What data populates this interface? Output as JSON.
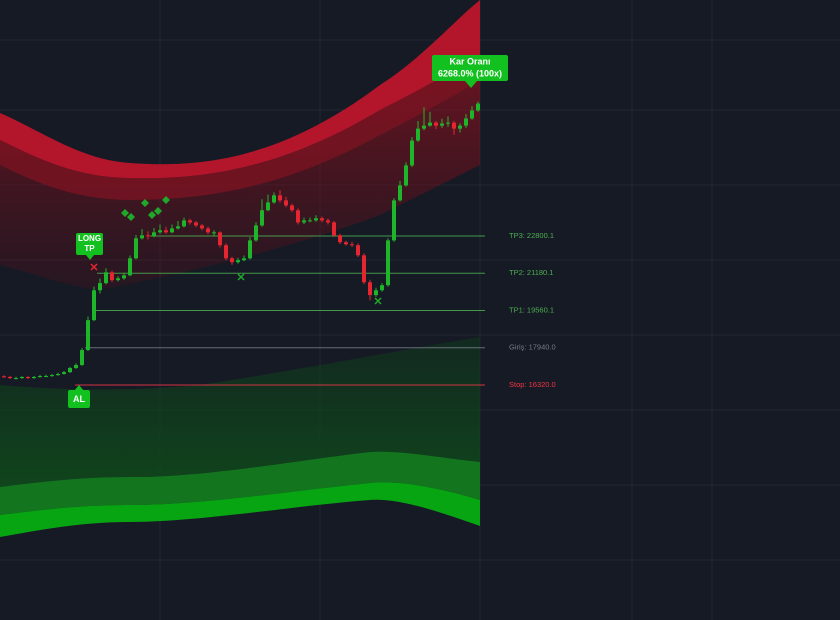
{
  "chart_data": {
    "type": "candlestick",
    "candles": [
      [
        16700,
        16740,
        16630,
        16670
      ],
      [
        16670,
        16710,
        16580,
        16620
      ],
      [
        16620,
        16680,
        16570,
        16620
      ],
      [
        16620,
        16700,
        16590,
        16670
      ],
      [
        16670,
        16700,
        16580,
        16620
      ],
      [
        16620,
        16710,
        16590,
        16670
      ],
      [
        16670,
        16760,
        16640,
        16710
      ],
      [
        16710,
        16770,
        16660,
        16710
      ],
      [
        16710,
        16800,
        16680,
        16750
      ],
      [
        16750,
        16850,
        16720,
        16800
      ],
      [
        16800,
        16930,
        16770,
        16880
      ],
      [
        16880,
        17110,
        16850,
        17060
      ],
      [
        17060,
        17260,
        17020,
        17190
      ],
      [
        17190,
        17930,
        17150,
        17840
      ],
      [
        17840,
        19300,
        17800,
        19140
      ],
      [
        19140,
        20600,
        19100,
        20440
      ],
      [
        20440,
        20950,
        20300,
        20750
      ],
      [
        20750,
        21400,
        20700,
        21220
      ],
      [
        21220,
        21300,
        20800,
        20880
      ],
      [
        20880,
        21050,
        20820,
        20960
      ],
      [
        20960,
        21200,
        20900,
        21090
      ],
      [
        21090,
        21950,
        21050,
        21830
      ],
      [
        21830,
        22850,
        21780,
        22700
      ],
      [
        22700,
        23100,
        22650,
        22830
      ],
      [
        22830,
        23000,
        22650,
        22790
      ],
      [
        22790,
        23150,
        22740,
        22960
      ],
      [
        22960,
        23300,
        22900,
        23050
      ],
      [
        23050,
        23200,
        22900,
        22960
      ],
      [
        22960,
        23300,
        22920,
        23130
      ],
      [
        23130,
        23450,
        23080,
        23220
      ],
      [
        23220,
        23600,
        23170,
        23480
      ],
      [
        23480,
        23550,
        23300,
        23390
      ],
      [
        23390,
        23450,
        23180,
        23260
      ],
      [
        23260,
        23320,
        23050,
        23130
      ],
      [
        23130,
        23200,
        22880,
        22960
      ],
      [
        22960,
        23050,
        22800,
        22960
      ],
      [
        22960,
        23000,
        22300,
        22400
      ],
      [
        22400,
        22480,
        21750,
        21830
      ],
      [
        21830,
        21900,
        21550,
        21660
      ],
      [
        21660,
        21850,
        21600,
        21750
      ],
      [
        21750,
        21950,
        21700,
        21830
      ],
      [
        21830,
        22750,
        21780,
        22610
      ],
      [
        22610,
        23400,
        22550,
        23260
      ],
      [
        23260,
        24400,
        23200,
        23920
      ],
      [
        23920,
        24600,
        23880,
        24260
      ],
      [
        24260,
        24700,
        24200,
        24570
      ],
      [
        24570,
        24800,
        24250,
        24350
      ],
      [
        24350,
        24500,
        24050,
        24130
      ],
      [
        24130,
        24200,
        23850,
        23920
      ],
      [
        23920,
        24000,
        23300,
        23390
      ],
      [
        23390,
        23600,
        23320,
        23480
      ],
      [
        23480,
        23600,
        23400,
        23480
      ],
      [
        23480,
        23700,
        23420,
        23570
      ],
      [
        23570,
        23650,
        23400,
        23480
      ],
      [
        23480,
        23560,
        23300,
        23390
      ],
      [
        23390,
        23450,
        22750,
        22830
      ],
      [
        22830,
        22900,
        22450,
        22530
      ],
      [
        22530,
        22600,
        22380,
        22440
      ],
      [
        22440,
        22550,
        22320,
        22400
      ],
      [
        22400,
        22480,
        21880,
        21960
      ],
      [
        21960,
        22050,
        20700,
        20790
      ],
      [
        20790,
        20900,
        20000,
        20230
      ],
      [
        20230,
        20550,
        20150,
        20440
      ],
      [
        20440,
        20750,
        20380,
        20660
      ],
      [
        20660,
        22700,
        20600,
        22610
      ],
      [
        22610,
        24450,
        22550,
        24350
      ],
      [
        24350,
        25200,
        24300,
        25000
      ],
      [
        25000,
        26000,
        24950,
        25870
      ],
      [
        25870,
        27100,
        25800,
        26950
      ],
      [
        26950,
        27800,
        26900,
        27470
      ],
      [
        27470,
        28400,
        27400,
        27600
      ],
      [
        27600,
        28200,
        27550,
        27730
      ],
      [
        27730,
        27800,
        27450,
        27600
      ],
      [
        27600,
        27900,
        27500,
        27690
      ],
      [
        27690,
        28000,
        27550,
        27730
      ],
      [
        27730,
        27800,
        27200,
        27470
      ],
      [
        27470,
        27700,
        27300,
        27600
      ],
      [
        27600,
        28100,
        27500,
        27910
      ],
      [
        27910,
        28450,
        27850,
        28260
      ],
      [
        28260,
        28650,
        28200,
        28560
      ]
    ],
    "up_color": "#1fb52a",
    "down_color": "#e5252f",
    "levels": [
      {
        "text": "TP3: 22800.1",
        "value": 22800.1,
        "color": "#4caf50"
      },
      {
        "text": "TP2: 21180.1",
        "value": 21180.1,
        "color": "#4caf50"
      },
      {
        "text": "TP1: 19560.1",
        "value": 19560.1,
        "color": "#4caf50"
      },
      {
        "text": "Giriş: 17940.0",
        "value": 17940.0,
        "color": "#787b86"
      },
      {
        "text": "Stop: 16320.0",
        "value": 16320.0,
        "color": "#f23645"
      }
    ],
    "profit_label": {
      "title": "Kar Oranı",
      "text": "6268.0% (100x)"
    },
    "long_tp_label": [
      "LONG",
      "TP"
    ],
    "buy_label": "AL"
  }
}
